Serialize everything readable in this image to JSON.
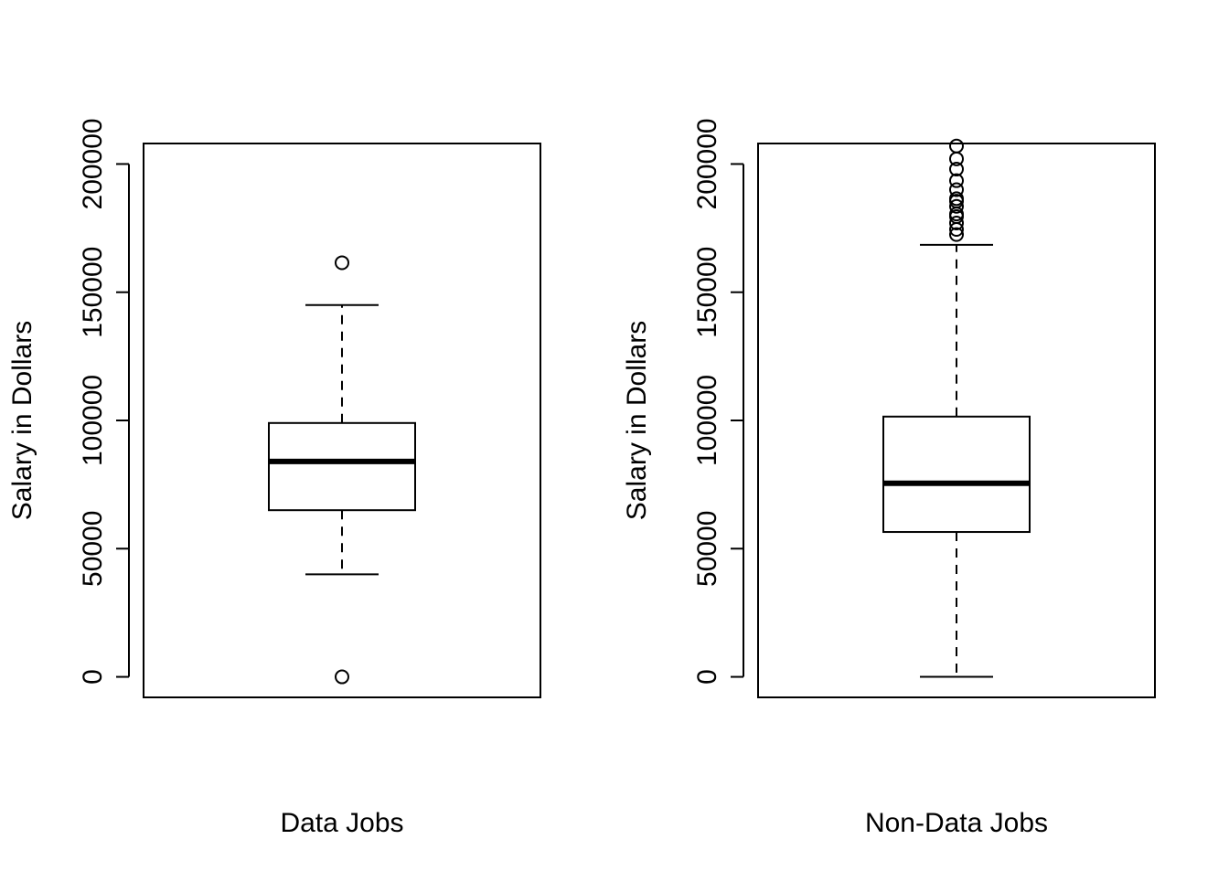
{
  "chart_data": [
    {
      "type": "box",
      "xlabel": "Data Jobs",
      "ylabel": "Salary in Dollars",
      "ylim": [
        -8000,
        208000
      ],
      "yticks": [
        0,
        50000,
        100000,
        150000,
        200000
      ],
      "ytick_labels": [
        "0",
        "50000",
        "100000",
        "150000",
        "200000"
      ],
      "grid": false,
      "box": {
        "lower_whisker": 40000,
        "q1": 65000,
        "median": 84000,
        "q3": 99000,
        "upper_whisker": 145000
      },
      "outliers": [
        161500,
        0
      ]
    },
    {
      "type": "box",
      "xlabel": "Non-Data Jobs",
      "ylabel": "Salary in Dollars",
      "ylim": [
        -8000,
        208000
      ],
      "yticks": [
        0,
        50000,
        100000,
        150000,
        200000
      ],
      "ytick_labels": [
        "0",
        "50000",
        "100000",
        "150000",
        "200000"
      ],
      "grid": false,
      "box": {
        "lower_whisker": 0,
        "q1": 56500,
        "median": 75500,
        "q3": 101500,
        "upper_whisker": 168500
      },
      "outliers": [
        172500,
        174500,
        177000,
        179500,
        180500,
        183500,
        185500,
        186500,
        190000,
        193500,
        198000,
        202000,
        207000
      ]
    }
  ]
}
